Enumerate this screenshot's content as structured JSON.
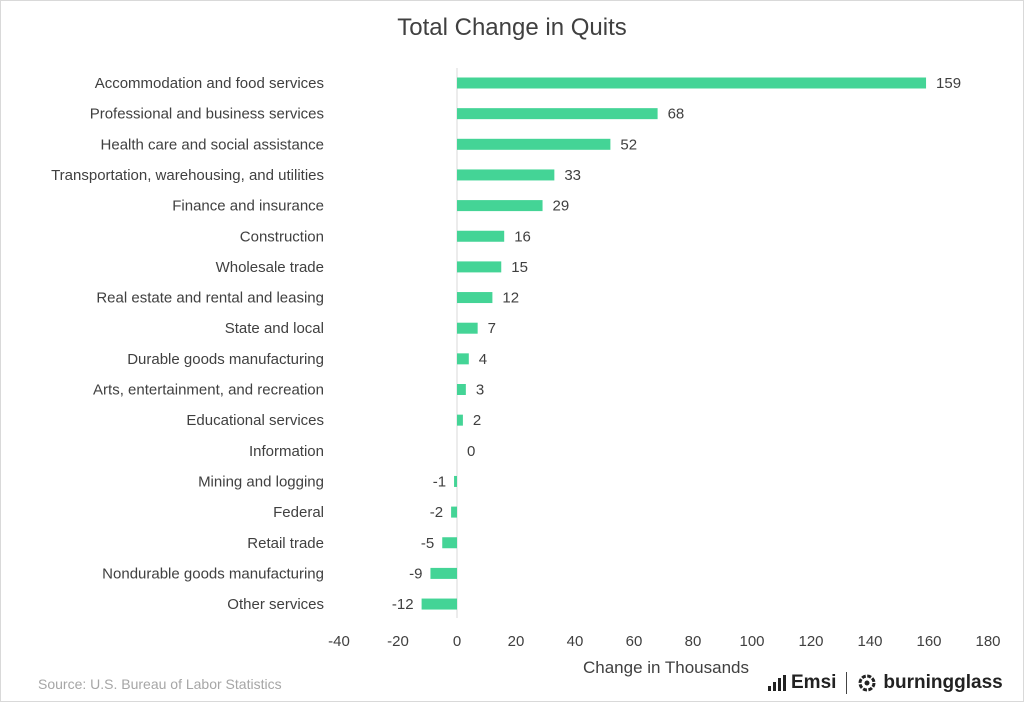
{
  "chart_data": {
    "type": "bar",
    "orientation": "horizontal",
    "title": "Total Change in Quits",
    "xlabel": "Change in Thousands",
    "ylabel": "",
    "categories": [
      "Accommodation and food services",
      "Professional and business services",
      "Health care and social assistance",
      "Transportation, warehousing, and utilities",
      "Finance and insurance",
      "Construction",
      "Wholesale trade",
      "Real estate and rental and leasing",
      "State and local",
      "Durable goods manufacturing",
      "Arts, entertainment, and recreation",
      "Educational services",
      "Information",
      "Mining and logging",
      "Federal",
      "Retail trade",
      "Nondurable goods manufacturing",
      "Other services"
    ],
    "values": [
      159,
      68,
      52,
      33,
      29,
      16,
      15,
      12,
      7,
      4,
      3,
      2,
      0,
      -1,
      -2,
      -5,
      -9,
      -12
    ],
    "xlim": [
      -40,
      180
    ],
    "xticks": [
      -40,
      -20,
      0,
      20,
      40,
      60,
      80,
      100,
      120,
      140,
      160,
      180
    ],
    "bar_color": "#44d496",
    "grid": false
  },
  "source": "Source:  U.S. Bureau of Labor Statistics",
  "logos": {
    "emsi": "Emsi",
    "burningglass": "burningglass"
  }
}
